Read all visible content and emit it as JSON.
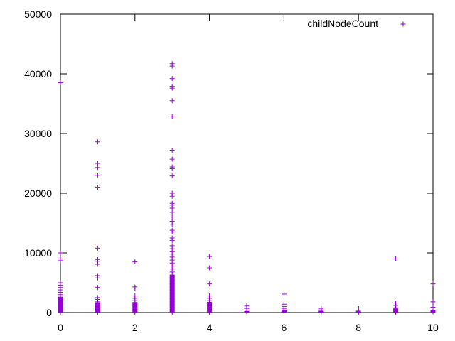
{
  "chart_data": {
    "type": "scatter",
    "title": "",
    "xlabel": "",
    "ylabel": "",
    "xlim": [
      0,
      10
    ],
    "ylim": [
      0,
      50000
    ],
    "x_ticks": [
      0,
      2,
      4,
      6,
      8,
      10
    ],
    "y_ticks": [
      0,
      10000,
      20000,
      30000,
      40000,
      50000
    ],
    "grid": false,
    "legend_position": "top-right",
    "marker": "plus",
    "series": [
      {
        "name": "childNodeCount",
        "color": "#9400d3",
        "points": [
          [
            0,
            38500
          ],
          [
            0,
            10000
          ],
          [
            0,
            9000
          ],
          [
            0,
            8700
          ],
          [
            0,
            5000
          ],
          [
            0,
            4600
          ],
          [
            0,
            4200
          ],
          [
            0,
            3800
          ],
          [
            0,
            3400
          ],
          [
            0,
            3000
          ],
          [
            0,
            2600
          ],
          [
            0,
            2300
          ],
          [
            0,
            2000
          ],
          [
            0,
            1700
          ],
          [
            0,
            1400
          ],
          [
            0,
            1100
          ],
          [
            0,
            800
          ],
          [
            0,
            500
          ],
          [
            0,
            250
          ],
          [
            0,
            50
          ],
          [
            1,
            28600
          ],
          [
            1,
            25000
          ],
          [
            1,
            24300
          ],
          [
            1,
            23000
          ],
          [
            1,
            21000
          ],
          [
            1,
            10800
          ],
          [
            1,
            8900
          ],
          [
            1,
            8600
          ],
          [
            1,
            8100
          ],
          [
            1,
            6200
          ],
          [
            1,
            5800
          ],
          [
            1,
            4200
          ],
          [
            1,
            2500
          ],
          [
            1,
            2200
          ],
          [
            1,
            1800
          ],
          [
            1,
            1500
          ],
          [
            1,
            1200
          ],
          [
            1,
            900
          ],
          [
            1,
            600
          ],
          [
            1,
            300
          ],
          [
            1,
            50
          ],
          [
            2,
            8500
          ],
          [
            2,
            4300
          ],
          [
            2,
            4100
          ],
          [
            2,
            2800
          ],
          [
            2,
            2400
          ],
          [
            2,
            2000
          ],
          [
            2,
            1700
          ],
          [
            2,
            1400
          ],
          [
            2,
            1100
          ],
          [
            2,
            800
          ],
          [
            2,
            500
          ],
          [
            2,
            250
          ],
          [
            2,
            50
          ],
          [
            3,
            41700
          ],
          [
            3,
            41300
          ],
          [
            3,
            39200
          ],
          [
            3,
            37900
          ],
          [
            3,
            37600
          ],
          [
            3,
            35500
          ],
          [
            3,
            32800
          ],
          [
            3,
            27200
          ],
          [
            3,
            25700
          ],
          [
            3,
            24400
          ],
          [
            3,
            24100
          ],
          [
            3,
            22900
          ],
          [
            3,
            20000
          ],
          [
            3,
            19500
          ],
          [
            3,
            18300
          ],
          [
            3,
            18000
          ],
          [
            3,
            17500
          ],
          [
            3,
            16800
          ],
          [
            3,
            16000
          ],
          [
            3,
            15300
          ],
          [
            3,
            14800
          ],
          [
            3,
            13800
          ],
          [
            3,
            13500
          ],
          [
            3,
            12500
          ],
          [
            3,
            12100
          ],
          [
            3,
            11200
          ],
          [
            3,
            10700
          ],
          [
            3,
            10200
          ],
          [
            3,
            9800
          ],
          [
            3,
            9300
          ],
          [
            3,
            8800
          ],
          [
            3,
            8300
          ],
          [
            3,
            7800
          ],
          [
            3,
            7300
          ],
          [
            3,
            6800
          ],
          [
            3,
            6300
          ],
          [
            3,
            5800
          ],
          [
            3,
            5300
          ],
          [
            3,
            4800
          ],
          [
            3,
            4300
          ],
          [
            3,
            3800
          ],
          [
            3,
            3300
          ],
          [
            3,
            2800
          ],
          [
            3,
            2300
          ],
          [
            3,
            1800
          ],
          [
            3,
            1300
          ],
          [
            3,
            800
          ],
          [
            3,
            400
          ],
          [
            3,
            50
          ],
          [
            4,
            9400
          ],
          [
            4,
            7500
          ],
          [
            4,
            4800
          ],
          [
            4,
            2800
          ],
          [
            4,
            2400
          ],
          [
            4,
            2000
          ],
          [
            4,
            1600
          ],
          [
            4,
            1200
          ],
          [
            4,
            800
          ],
          [
            4,
            400
          ],
          [
            4,
            50
          ],
          [
            5,
            1100
          ],
          [
            5,
            700
          ],
          [
            5,
            400
          ],
          [
            5,
            150
          ],
          [
            6,
            3100
          ],
          [
            6,
            1400
          ],
          [
            6,
            1000
          ],
          [
            6,
            700
          ],
          [
            6,
            400
          ],
          [
            6,
            150
          ],
          [
            7,
            700
          ],
          [
            7,
            450
          ],
          [
            7,
            250
          ],
          [
            7,
            80
          ],
          [
            8,
            250
          ],
          [
            8,
            120
          ],
          [
            8,
            40
          ],
          [
            9,
            9000
          ],
          [
            9,
            1600
          ],
          [
            9,
            1200
          ],
          [
            9,
            800
          ],
          [
            9,
            500
          ],
          [
            9,
            250
          ],
          [
            9,
            60
          ],
          [
            10,
            4800
          ],
          [
            10,
            1800
          ],
          [
            10,
            900
          ],
          [
            10,
            400
          ],
          [
            10,
            100
          ]
        ]
      }
    ]
  }
}
